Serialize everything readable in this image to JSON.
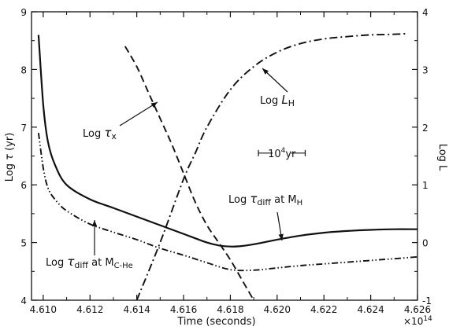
{
  "chart_data": {
    "type": "line",
    "x_label": "Time (seconds)",
    "x_multiplier": "×10",
    "x_multiplier_exp": "14",
    "xlim": [
      4.6095,
      4.626
    ],
    "x_ticks": [
      4.61,
      4.612,
      4.614,
      4.616,
      4.618,
      4.62,
      4.622,
      4.624,
      4.626
    ],
    "x_tick_labels": [
      "4.610",
      "4.612",
      "4.614",
      "4.616",
      "4.618",
      "4.620",
      "4.622",
      "4.624",
      "4.626"
    ],
    "left_axis": {
      "label_main": "Log",
      "label_symbol": "τ",
      "label_unit": "(yr)",
      "ylim": [
        4,
        9
      ],
      "ticks": [
        4,
        5,
        6,
        7,
        8,
        9
      ],
      "tick_labels": [
        "4",
        "5",
        "6",
        "7",
        "8",
        "9"
      ]
    },
    "right_axis": {
      "label": "Log L",
      "ylim": [
        -1,
        4
      ],
      "ticks": [
        -1,
        0,
        1,
        2,
        3,
        4
      ],
      "tick_labels": [
        "-1",
        "0",
        "1",
        "2",
        "3",
        "4"
      ]
    },
    "series": [
      {
        "axis": "left",
        "style": "solid",
        "x": [
          4.6098,
          4.61,
          4.6102,
          4.6105,
          4.611,
          4.612,
          4.613,
          4.614,
          4.615,
          4.616,
          4.617,
          4.6175,
          4.618,
          4.6185,
          4.619,
          4.62,
          4.621,
          4.622,
          4.623,
          4.624,
          4.625,
          4.626
        ],
        "y": [
          8.6,
          7.4,
          6.75,
          6.35,
          6.0,
          5.75,
          5.6,
          5.45,
          5.3,
          5.15,
          5.0,
          4.95,
          4.93,
          4.94,
          4.97,
          5.05,
          5.12,
          5.17,
          5.2,
          5.22,
          5.23,
          5.23
        ]
      },
      {
        "axis": "left",
        "style": "dash-dot-dot",
        "x": [
          4.6098,
          4.61,
          4.6102,
          4.6105,
          4.611,
          4.612,
          4.613,
          4.614,
          4.615,
          4.616,
          4.617,
          4.618,
          4.619,
          4.62,
          4.621,
          4.622,
          4.623,
          4.624,
          4.625,
          4.626
        ],
        "y": [
          6.9,
          6.3,
          5.95,
          5.75,
          5.55,
          5.32,
          5.18,
          5.05,
          4.9,
          4.78,
          4.65,
          4.53,
          4.52,
          4.56,
          4.6,
          4.63,
          4.66,
          4.69,
          4.72,
          4.75
        ]
      },
      {
        "axis": "left",
        "style": "dashed",
        "x": [
          4.6135,
          4.614,
          4.6145,
          4.615,
          4.6155,
          4.616,
          4.6165,
          4.617,
          4.6175,
          4.618,
          4.6185,
          4.619
        ],
        "y": [
          8.4,
          8.05,
          7.6,
          7.15,
          6.7,
          6.2,
          5.7,
          5.3,
          5.0,
          4.7,
          4.35,
          4.0
        ]
      },
      {
        "axis": "right",
        "style": "dash-dot",
        "x": [
          4.614,
          4.615,
          4.616,
          4.6165,
          4.617,
          4.618,
          4.619,
          4.62,
          4.621,
          4.622,
          4.623,
          4.624,
          4.625,
          4.6255
        ],
        "y": [
          -1.0,
          0.0,
          1.1,
          1.55,
          2.0,
          2.65,
          3.05,
          3.3,
          3.45,
          3.53,
          3.57,
          3.6,
          3.61,
          3.62
        ]
      }
    ],
    "annotations": [
      {
        "main": "Log τ",
        "sub": "diff",
        "tail": " at M",
        "tail_sub": "H"
      },
      {
        "main": "Log τ",
        "sub": "diff",
        "tail": " at M",
        "tail_sub": "C-He"
      },
      {
        "main": "Log τ",
        "sub": "x",
        "tail": "",
        "tail_sub": ""
      },
      {
        "main": "Log L",
        "sub": "H",
        "tail": "",
        "tail_sub": ""
      }
    ],
    "scale_bar": {
      "label": "10",
      "label_exp": "4",
      "label_unit": "yr",
      "x_start": 4.6192,
      "x_end": 4.6212,
      "y": 6.55
    }
  }
}
